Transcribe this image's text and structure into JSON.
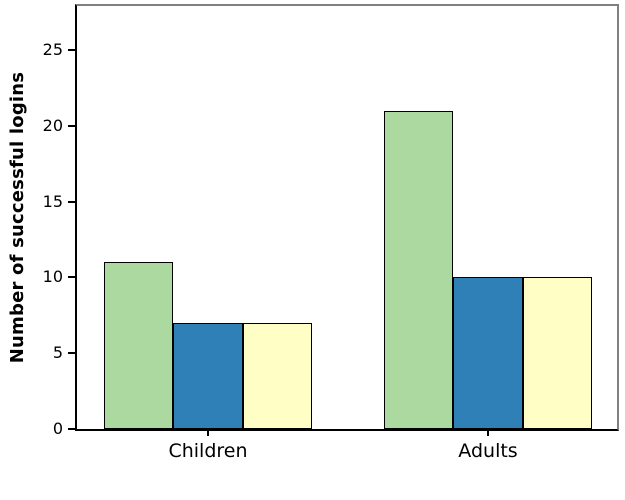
{
  "chart_data": {
    "type": "bar",
    "title": "",
    "xlabel": "",
    "ylabel": "Number of successful logins",
    "categories": [
      "Children",
      "Adults"
    ],
    "series": [
      {
        "name": "green",
        "color": "#abd9a0",
        "values": [
          11,
          21
        ]
      },
      {
        "name": "blue",
        "color": "#2e80b6",
        "values": [
          7,
          10
        ]
      },
      {
        "name": "yellow",
        "color": "#ffffc5",
        "values": [
          7,
          10
        ]
      }
    ],
    "yticks": [
      0,
      5,
      10,
      15,
      20,
      25
    ],
    "ylim": [
      0,
      27.9
    ],
    "grid": false,
    "legend": "none",
    "bar_border_color": "#000000",
    "axis_color": "#000000",
    "frame_color": "#808080",
    "background": "#ffffff"
  }
}
